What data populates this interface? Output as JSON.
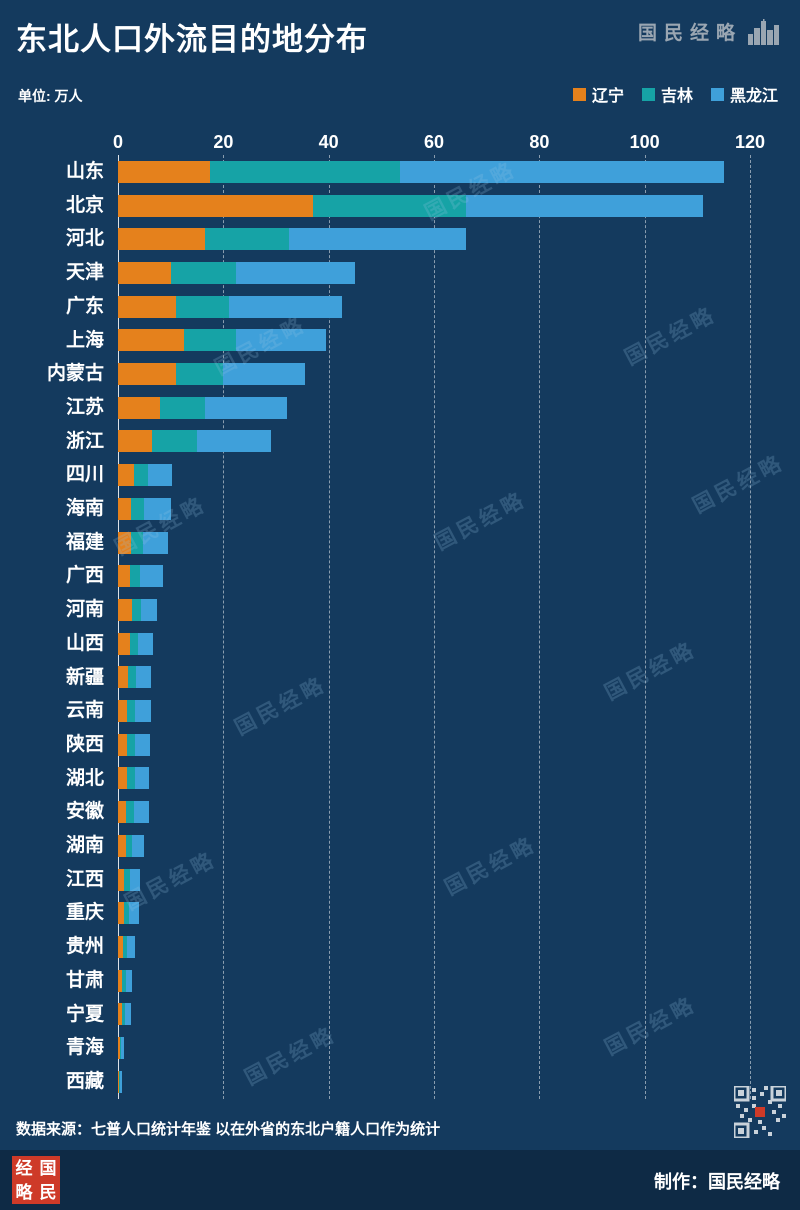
{
  "title": "东北人口外流目的地分布",
  "unit_label": "单位: 万人",
  "watermark_text": "国民经略",
  "source_note": "数据来源：七普人口统计年鉴  以在外省的东北户籍人口作为统计",
  "brand": {
    "name": "国民经略",
    "footer_credit": "制作：国民经略",
    "seal_chars": [
      "经",
      "国",
      "略",
      "民"
    ]
  },
  "colors": {
    "background": "#143a5e",
    "footer_background": "#0e2a45",
    "liaoning": "#e5811c",
    "jilin": "#16a3a6",
    "heilongjiang": "#3fa0da",
    "seal_red": "#ce3a28"
  },
  "chart_data": {
    "type": "bar",
    "orientation": "horizontal",
    "stacked": true,
    "grid": "dashed-vertical",
    "legend_position": "top-right",
    "xlim": [
      0,
      120
    ],
    "x_ticks": [
      0,
      20,
      40,
      60,
      80,
      100,
      120
    ],
    "categories": [
      "山东",
      "北京",
      "河北",
      "天津",
      "广东",
      "上海",
      "内蒙古",
      "江苏",
      "浙江",
      "四川",
      "海南",
      "福建",
      "广西",
      "河南",
      "山西",
      "新疆",
      "云南",
      "陕西",
      "湖北",
      "安徽",
      "湖南",
      "江西",
      "重庆",
      "贵州",
      "甘肃",
      "宁夏",
      "青海",
      "西藏"
    ],
    "series": [
      {
        "name": "辽宁",
        "color": "#e5811c",
        "values": [
          17.5,
          37,
          16.5,
          10,
          11,
          12.5,
          11,
          8,
          6.5,
          3,
          2.5,
          2.5,
          2.2,
          2.6,
          2.3,
          1.9,
          1.8,
          1.8,
          1.8,
          1.6,
          1.5,
          1.2,
          1.2,
          1.0,
          0.8,
          0.7,
          0.35,
          0.2
        ]
      },
      {
        "name": "吉林",
        "color": "#16a3a6",
        "values": [
          36,
          29,
          16,
          12.5,
          10,
          10,
          9,
          8.5,
          8.5,
          2.7,
          2.5,
          2.2,
          2.0,
          1.8,
          1.5,
          1.5,
          1.5,
          1.5,
          1.4,
          1.4,
          1.2,
          1.0,
          0.9,
          0.8,
          0.7,
          0.6,
          0.3,
          0.15
        ]
      },
      {
        "name": "黑龙江",
        "color": "#3fa0da",
        "values": [
          61.5,
          45,
          33.5,
          22.5,
          21.5,
          17,
          15.5,
          15.5,
          14,
          4.5,
          5.0,
          4.8,
          4.3,
          3.1,
          2.9,
          2.9,
          2.9,
          2.8,
          2.7,
          2.8,
          2.3,
          1.9,
          1.8,
          1.4,
          1.2,
          1.1,
          0.55,
          0.35
        ]
      }
    ]
  }
}
